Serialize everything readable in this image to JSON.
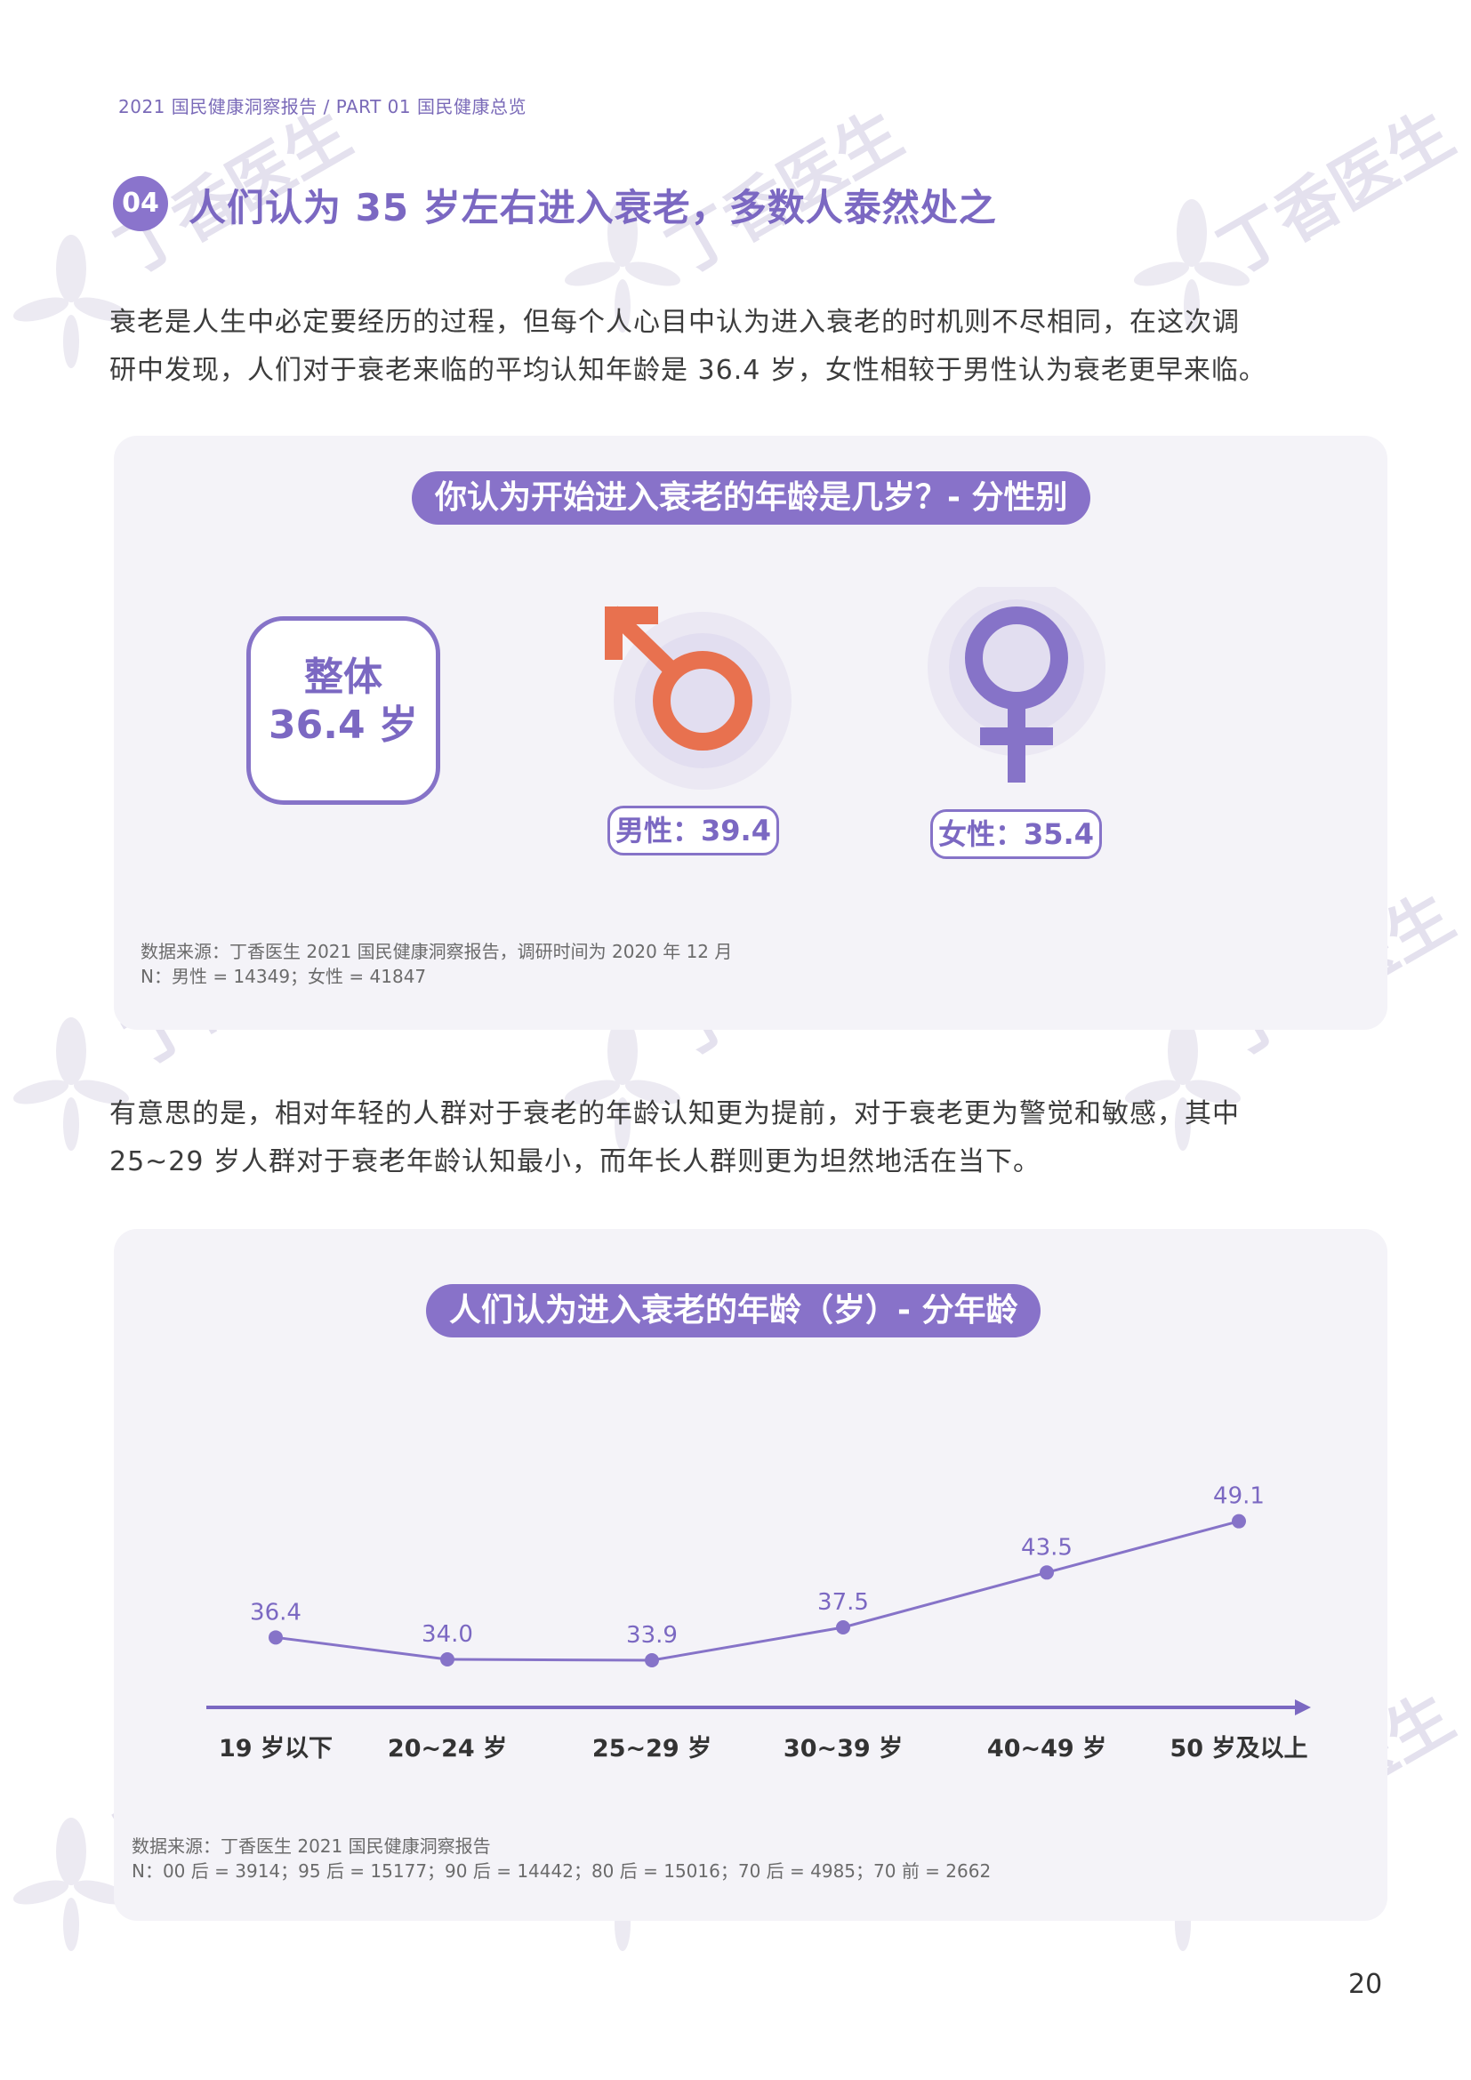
{
  "header": {
    "breadcrumb": "2021 国民健康洞察报告 / PART 01 国民健康总览"
  },
  "section": {
    "number": "04",
    "title": "人们认为 35 岁左右进入衰老，多数人泰然处之"
  },
  "intro": {
    "line1": "衰老是人生中必定要经历的过程，但每个人心目中认为进入衰老的时机则不尽相同，在这次调",
    "line2": "研中发现，人们对于衰老来临的平均认知年龄是 36.4 岁，女性相较于男性认为衰老更早来临。"
  },
  "gender_panel": {
    "title": "你认为开始进入衰老的年龄是几岁？- 分性别",
    "total_label": "整体",
    "total_value": "36.4 岁",
    "male_label": "男性：39.4",
    "female_label": "女性：35.4",
    "male_value": 39.4,
    "female_value": 35.4,
    "male_color": "#e8714f",
    "female_color": "#8673c8",
    "source_line1": "数据来源：丁香医生 2021 国民健康洞察报告，调研时间为  2020  年  12  月",
    "source_line2": "N：男性 = 14349；女性 = 41847"
  },
  "middle": {
    "line1": "有意思的是，相对年轻的人群对于衰老的年龄认知更为提前，对于衰老更为警觉和敏感，其中",
    "line2": "25~29 岁人群对于衰老年龄认知最小，而年长人群则更为坦然地活在当下。"
  },
  "chart_data": {
    "type": "line",
    "title": "人们认为进入衰老的年龄（岁）- 分年龄",
    "categories": [
      "19 岁以下",
      "20~24 岁",
      "25~29 岁",
      "30~39 岁",
      "40~49 岁",
      "50 岁及以上"
    ],
    "values": [
      36.4,
      34.0,
      33.9,
      37.5,
      43.5,
      49.1
    ],
    "value_labels": [
      "36.4",
      "34.0",
      "33.9",
      "37.5",
      "43.5",
      "49.1"
    ],
    "xlabel": "",
    "ylabel": "",
    "ylim": [
      20,
      55
    ],
    "color": "#8673c8"
  },
  "age_panel": {
    "source_line1": "数据来源：丁香医生 2021 国民健康洞察报告",
    "source_line2": "N：00 后 = 3914；95 后 = 15177；90 后 = 14442；80 后 = 15016；70 后 = 4985；70 前 = 2662"
  },
  "watermark_text": "丁香医生",
  "page_number": "20"
}
